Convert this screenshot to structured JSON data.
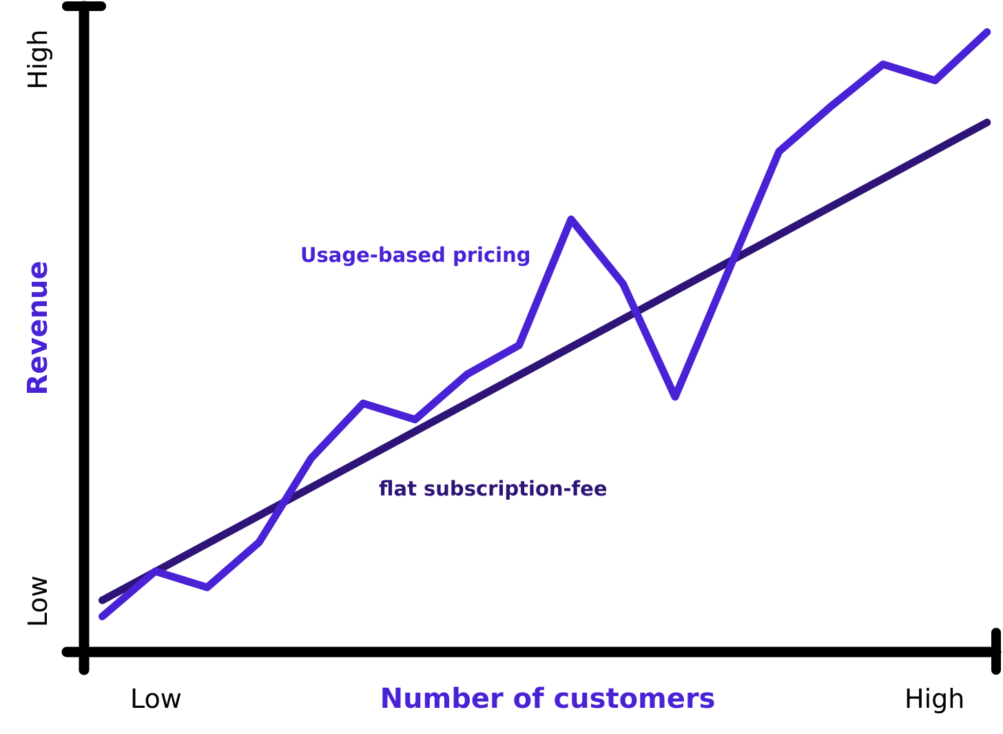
{
  "chart_data": {
    "type": "line",
    "title": "",
    "xlabel": "Number of customers",
    "ylabel": "Revenue",
    "x_tick_labels": {
      "low": "Low",
      "high": "High"
    },
    "y_tick_labels": {
      "low": "Low",
      "high": "High"
    },
    "xlim": [
      0,
      10
    ],
    "ylim": [
      0,
      10
    ],
    "grid": false,
    "legend": "none",
    "series": [
      {
        "name": "Usage-based pricing",
        "color": "#4a22d6",
        "x": [
          0.2,
          0.78,
          1.35,
          1.92,
          2.49,
          3.06,
          3.63,
          4.2,
          4.77,
          5.34,
          5.91,
          6.48,
          7.05,
          7.62,
          8.19,
          8.76,
          9.33,
          9.9
        ],
        "y": [
          0.55,
          1.25,
          1.0,
          1.7,
          3.0,
          3.85,
          3.6,
          4.3,
          4.75,
          6.7,
          5.7,
          3.95,
          5.85,
          7.75,
          8.45,
          9.1,
          8.85,
          9.6
        ]
      },
      {
        "name": "flat subscription-fee",
        "color": "#2e1477",
        "x": [
          0.2,
          9.9
        ],
        "y": [
          0.8,
          8.2
        ]
      }
    ]
  }
}
